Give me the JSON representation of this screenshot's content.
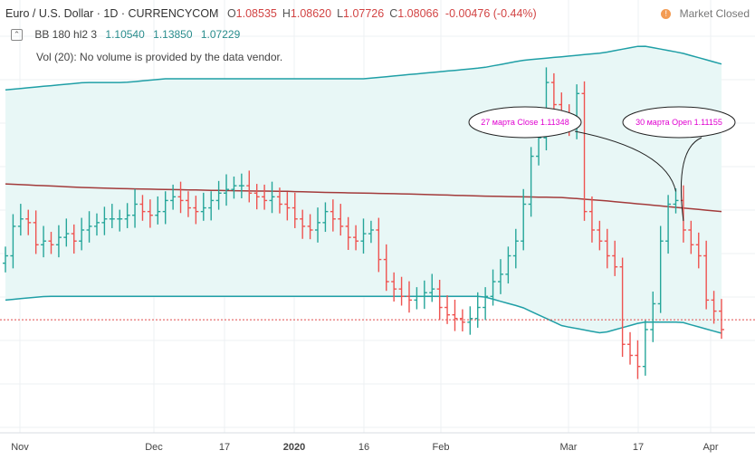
{
  "header": {
    "symbol": "Euro / U.S. Dollar · 1D · CURRENCYCOM",
    "ohlc": [
      {
        "label": "O",
        "value": "1.08535"
      },
      {
        "label": "H",
        "value": "1.08620"
      },
      {
        "label": "L",
        "value": "1.07726"
      },
      {
        "label": "C",
        "value": "1.08066"
      }
    ],
    "change": "-0.00476 (-0.44%)",
    "market_status": "Market Closed",
    "market_icon": "exclamation-icon"
  },
  "indicators": {
    "bb_label": "BB 180 hl2 3",
    "bb_values": [
      "1.10540",
      "1.13850",
      "1.07229"
    ],
    "vol_label": "Vol (20): No volume is provided by the data vendor.",
    "collapse_icon": "chevron-up-icon"
  },
  "colors": {
    "up": "#26a69a",
    "down": "#ef5350",
    "band": "#1f9fa6",
    "basis": "#a33b3b",
    "fill": "#e8f7f6",
    "current_line": "#e04b4b",
    "annotation_text": "#e000d0"
  },
  "chart_data": {
    "type": "ohlc",
    "x_tick_labels": [
      "Nov",
      "Dec",
      "17",
      "2020",
      "16",
      "Feb",
      "Mar",
      "17",
      "Apr"
    ],
    "y_range": [
      1.05,
      1.16
    ],
    "grid": true,
    "current_price": 1.08066,
    "series": [
      {
        "name": "EUR/USD",
        "values": [
          1.098,
          1.106,
          1.108,
          1.107,
          1.101,
          1.102,
          1.101,
          1.103,
          1.104,
          1.102,
          1.105,
          1.106,
          1.107,
          1.108,
          1.108,
          1.108,
          1.109,
          1.112,
          1.11,
          1.109,
          1.11,
          1.113,
          1.114,
          1.113,
          1.111,
          1.11,
          1.111,
          1.113,
          1.115,
          1.116,
          1.117,
          1.117,
          1.115,
          1.114,
          1.113,
          1.114,
          1.112,
          1.111,
          1.108,
          1.106,
          1.105,
          1.107,
          1.11,
          1.108,
          1.106,
          1.103,
          1.102,
          1.104,
          1.105,
          1.097,
          1.091,
          1.089,
          1.087,
          1.086,
          1.087,
          1.088,
          1.089,
          1.084,
          1.082,
          1.081,
          1.08,
          1.081,
          1.084,
          1.087,
          1.091,
          1.093,
          1.098,
          1.102,
          1.112,
          1.125,
          1.13,
          1.145,
          1.139,
          1.135,
          1.133,
          1.142,
          1.11,
          1.105,
          1.102,
          1.098,
          1.095,
          1.074,
          1.071,
          1.068,
          1.078,
          1.085,
          1.102,
          1.112,
          1.113,
          1.105,
          1.101,
          1.098,
          1.086,
          1.083,
          1.078
        ]
      },
      {
        "name": "BB upper",
        "values": [
          1.143,
          1.144,
          1.145,
          1.145,
          1.146,
          1.146,
          1.146,
          1.146,
          1.146,
          1.146,
          1.147,
          1.148,
          1.149,
          1.151,
          1.152,
          1.153,
          1.155,
          1.153,
          1.15
        ]
      },
      {
        "name": "BB basis",
        "values": [
          1.1175,
          1.117,
          1.1165,
          1.1162,
          1.116,
          1.1158,
          1.1156,
          1.1155,
          1.1152,
          1.115,
          1.1148,
          1.1145,
          1.1142,
          1.114,
          1.1138,
          1.113,
          1.112,
          1.111,
          1.11
        ]
      },
      {
        "name": "BB lower",
        "values": [
          1.086,
          1.087,
          1.087,
          1.087,
          1.087,
          1.087,
          1.087,
          1.087,
          1.087,
          1.087,
          1.087,
          1.087,
          1.087,
          1.084,
          1.079,
          1.077,
          1.08,
          1.08,
          1.077
        ]
      }
    ],
    "annotations": [
      {
        "text": "27 марта Close 1.11348",
        "target_index": 88
      },
      {
        "text": "30 марта Open 1.11155",
        "target_index": 89
      }
    ]
  }
}
